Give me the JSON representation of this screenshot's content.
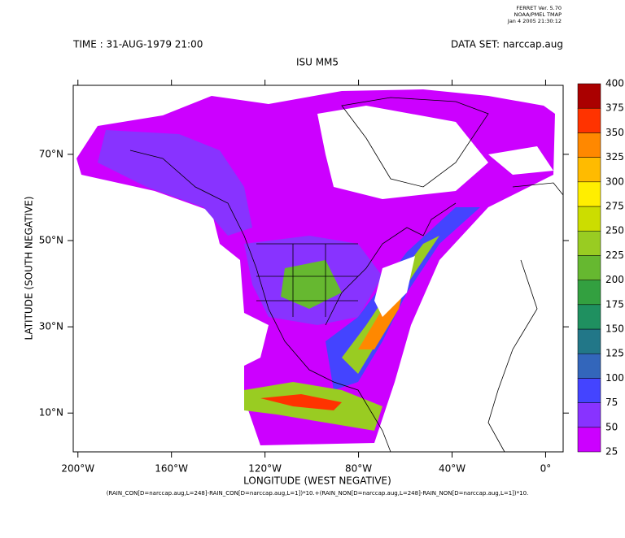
{
  "chart_data": {
    "type": "map",
    "software": [
      "FERRET Ver. 5.70",
      "NOAA/PMEL TMAP",
      "Jan  4 2005 21:30:12"
    ],
    "header_left": "TIME : 31-AUG-1979 21:00",
    "header_right": "DATA SET: narccap.aug",
    "title": "ISU MM5",
    "xlabel": "LONGITUDE (WEST NEGATIVE)",
    "ylabel": "LATITUDE (SOUTH NEGATIVE)",
    "footnote": "(RAIN_CON[D=narccap.aug,L=248]-RAIN_CON[D=narccap.aug,L=1])*10.+(RAIN_NON[D=narccap.aug,L=248]-RAIN_NON[D=narccap.aug,L=1])*10.",
    "xlim": [
      -202,
      7.5
    ],
    "ylim": [
      1,
      86
    ],
    "xticks": [
      {
        "value": -200,
        "label": "200°W"
      },
      {
        "value": -160,
        "label": "160°W"
      },
      {
        "value": -120,
        "label": "120°W"
      },
      {
        "value": -80,
        "label": "80°W"
      },
      {
        "value": -40,
        "label": "40°W"
      },
      {
        "value": 0,
        "label": "0°"
      }
    ],
    "yticks": [
      {
        "value": 10,
        "label": "10°N"
      },
      {
        "value": 30,
        "label": "30°N"
      },
      {
        "value": 50,
        "label": "50°N"
      },
      {
        "value": 70,
        "label": "70°N"
      }
    ],
    "colorbar": {
      "levels": [
        25,
        50,
        75,
        100,
        125,
        150,
        175,
        200,
        225,
        250,
        275,
        300,
        325,
        350,
        375,
        400
      ],
      "colors": [
        "#cc00ff",
        "#8833ff",
        "#4444ff",
        "#3366bb",
        "#227788",
        "#1f9060",
        "#33a040",
        "#66b830",
        "#99cc22",
        "#ccdd00",
        "#ffee00",
        "#ffbb00",
        "#ff8800",
        "#ff3300",
        "#aa0000"
      ]
    }
  }
}
